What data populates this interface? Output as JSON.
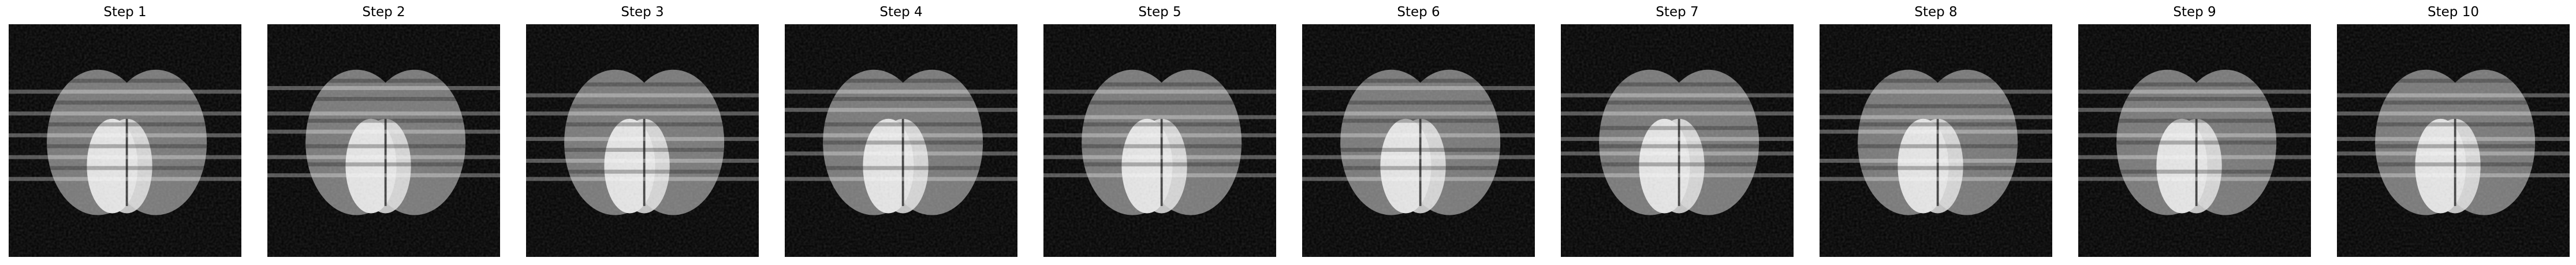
{
  "panels": [
    {
      "title": "Step 1"
    },
    {
      "title": "Step 2"
    },
    {
      "title": "Step 3"
    },
    {
      "title": "Step 4"
    },
    {
      "title": "Step 5"
    },
    {
      "title": "Step 6"
    },
    {
      "title": "Step 7"
    },
    {
      "title": "Step 8"
    },
    {
      "title": "Step 9"
    },
    {
      "title": "Step 10"
    }
  ],
  "colors": {
    "background": "#000000",
    "outer_ellipse": "#787878",
    "inner_ellipse": "#e6e6e6",
    "bands": "#ffffff"
  },
  "colormap": "gray"
}
